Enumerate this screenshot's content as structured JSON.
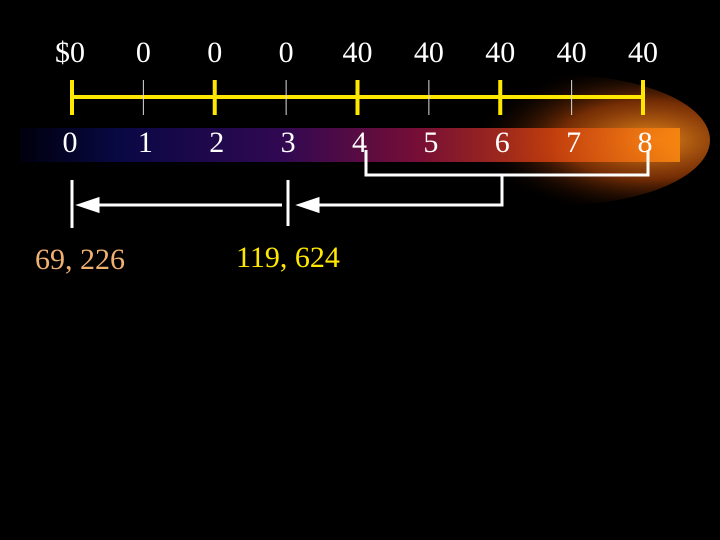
{
  "timeline": {
    "cash_flows": [
      "$0",
      "0",
      "0",
      "0",
      "40",
      "40",
      "40",
      "40",
      "40"
    ],
    "periods": [
      "0",
      "1",
      "2",
      "3",
      "4",
      "5",
      "6",
      "7",
      "8"
    ]
  },
  "present_values": [
    "69, 226",
    "119, 624"
  ]
}
